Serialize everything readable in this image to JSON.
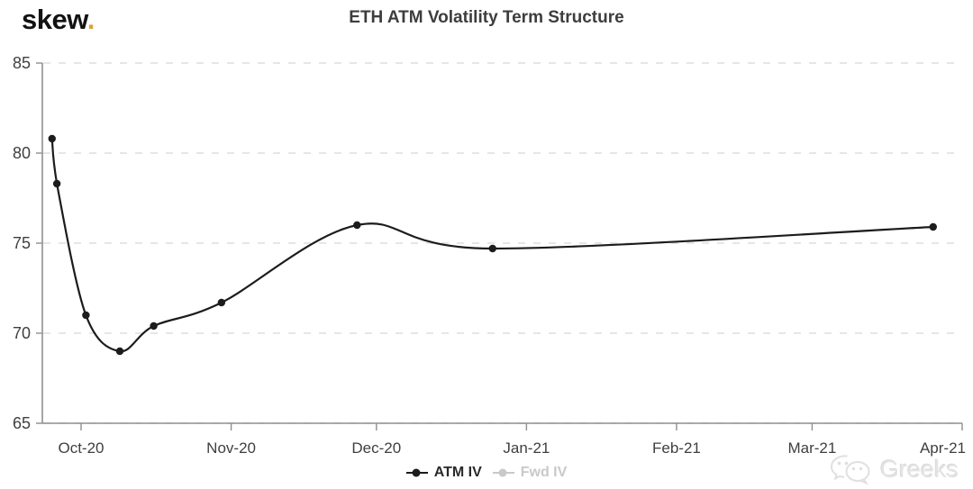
{
  "header": {
    "logo_text": "skew",
    "logo_dot": ".",
    "title": "ETH ATM Volatility Term Structure"
  },
  "chart_data": {
    "type": "line",
    "title": "ETH ATM Volatility Term Structure",
    "xlabel": "",
    "ylabel": "",
    "ylim": [
      65,
      85
    ],
    "yticks": [
      65,
      70,
      75,
      80,
      85
    ],
    "grid": "horizontal-dashed",
    "legend_position": "bottom-center",
    "xticks": [
      {
        "label": "Oct-20",
        "date": "2020-10-01"
      },
      {
        "label": "Nov-20",
        "date": "2020-11-01"
      },
      {
        "label": "Dec-20",
        "date": "2020-12-01"
      },
      {
        "label": "Jan-21",
        "date": "2021-01-01"
      },
      {
        "label": "Feb-21",
        "date": "2021-02-01"
      },
      {
        "label": "Mar-21",
        "date": "2021-03-01"
      },
      {
        "label": "Apr-21",
        "date": "2021-04-01",
        "anchor": "end"
      }
    ],
    "series": [
      {
        "name": "ATM IV",
        "color": "#1c1c1c",
        "active": true,
        "marker": "circle",
        "points": [
          {
            "date": "2020-09-25",
            "value": 80.8
          },
          {
            "date": "2020-09-26",
            "value": 78.3
          },
          {
            "date": "2020-10-02",
            "value": 71.0
          },
          {
            "date": "2020-10-09",
            "value": 69.0
          },
          {
            "date": "2020-10-16",
            "value": 70.4
          },
          {
            "date": "2020-10-30",
            "value": 71.7
          },
          {
            "date": "2020-11-27",
            "value": 76.0
          },
          {
            "date": "2020-12-25",
            "value": 74.7
          },
          {
            "date": "2021-03-26",
            "value": 75.9
          }
        ]
      },
      {
        "name": "Fwd IV",
        "color": "#c9c9c9",
        "active": false,
        "marker": "circle",
        "points": []
      }
    ]
  },
  "watermark": {
    "text": "Greeks"
  },
  "colors": {
    "accent_dot": "#d9a43c",
    "axis": "#8f8f8f",
    "grid": "#e3e3e3",
    "tick_label": "#3f3f3f",
    "title": "#3d3d3d"
  }
}
